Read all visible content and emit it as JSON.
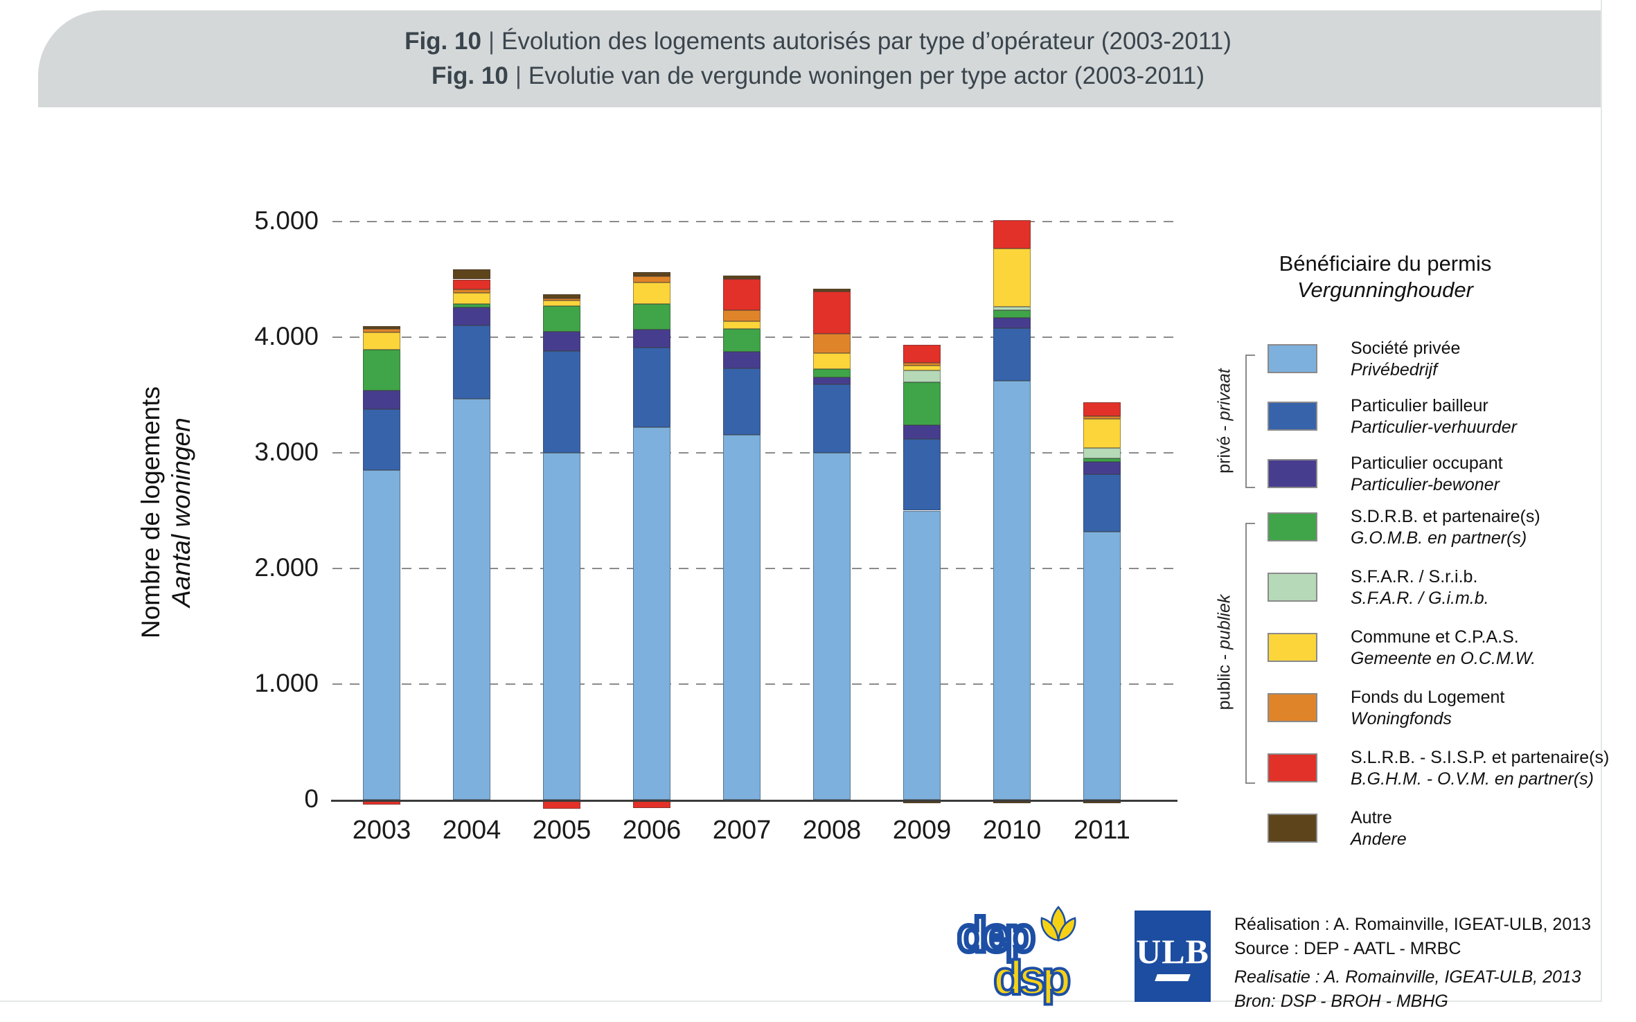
{
  "header": {
    "separator": "|",
    "title_fr_prefix": "Fig. 10",
    "title_fr_rest": "Évolution des logements autorisés par type d’opérateur (2003-2011)",
    "title_nl_prefix": "Fig. 10",
    "title_nl_rest": "Evolutie van de vergunde woningen per type actor (2003-2011)"
  },
  "y_axis": {
    "label_fr": "Nombre de logements",
    "label_nl": "Aantal woningen",
    "tick_labels": [
      "5.000",
      "4.000",
      "3.000",
      "2.000",
      "1.000",
      "0"
    ],
    "tick_values": [
      5000,
      4000,
      3000,
      2000,
      1000,
      0
    ]
  },
  "legend": {
    "title_fr": "Bénéficiaire du permis",
    "title_nl": "Vergunninghouder",
    "group_private_fr": "privé - ",
    "group_private_nl": "privaat",
    "group_public_fr": "public - ",
    "group_public_nl": "publiek"
  },
  "footer": {
    "credit_line1": "Réalisation : A. Romainville, IGEAT-ULB, 2013",
    "credit_line2": "Source : DEP - AATL - MRBC",
    "credit_line3": "Realisatie : A. Romainville, IGEAT-ULB, 2013",
    "credit_line4": "Bron: DSP - BROH - MBHG",
    "ulb_logo_text": "ULB",
    "dep_logo_text_top": "dep",
    "dep_logo_text_bottom": "dsp"
  },
  "chart_data": {
    "type": "bar",
    "stacked": true,
    "title": "Évolution des logements autorisés par type d’opérateur (2003-2011)",
    "ylabel": "Nombre de logements / Aantal woningen",
    "ylim": [
      -100,
      5000
    ],
    "grid": "horizontal-dashed",
    "legend_position": "right",
    "categories": [
      "2003",
      "2004",
      "2005",
      "2006",
      "2007",
      "2008",
      "2009",
      "2010",
      "2011"
    ],
    "totals_positive": [
      4095,
      4585,
      4370,
      4560,
      4530,
      4420,
      3935,
      5010,
      3440
    ],
    "series": [
      {
        "name_fr": "Société privée",
        "name_nl": "Privébedrijf",
        "group": "private",
        "color": "#7db0dc",
        "values": [
          2850,
          3465,
          3000,
          3220,
          3155,
          3000,
          2500,
          3625,
          2315
        ]
      },
      {
        "name_fr": "Particulier bailleur",
        "name_nl": "Particulier-verhuurder",
        "group": "private",
        "color": "#3763ab",
        "values": [
          530,
          635,
          880,
          690,
          575,
          590,
          620,
          450,
          500
        ]
      },
      {
        "name_fr": "Particulier occupant",
        "name_nl": "Particulier-bewoner",
        "group": "private",
        "color": "#473d8f",
        "values": [
          160,
          155,
          165,
          155,
          145,
          60,
          120,
          95,
          105
        ]
      },
      {
        "name_fr": "S.D.R.B. et partenaire(s)",
        "name_nl": "G.O.M.B. en partner(s)",
        "group": "public",
        "color": "#3fa548",
        "values": [
          355,
          35,
          225,
          225,
          195,
          75,
          370,
          65,
          30
        ]
      },
      {
        "name_fr": "S.F.A.R. / S.r.i.b.",
        "name_nl": "S.F.A.R. / G.i.m.b.",
        "group": "public",
        "color": "#b6d9b8",
        "values": [
          0,
          0,
          0,
          0,
          0,
          0,
          100,
          30,
          90
        ]
      },
      {
        "name_fr": "Commune et C.P.A.S.",
        "name_nl": "Gemeente en O.C.M.W.",
        "group": "public",
        "color": "#fcd53b",
        "values": [
          145,
          95,
          50,
          185,
          70,
          140,
          45,
          500,
          255
        ]
      },
      {
        "name_fr": "Fonds du Logement",
        "name_nl": "Woningfonds",
        "group": "public",
        "color": "#e08429",
        "values": [
          30,
          30,
          15,
          50,
          95,
          165,
          25,
          0,
          20
        ]
      },
      {
        "name_fr": "S.L.R.B. - S.I.S.P. et partenaire(s)",
        "name_nl": "B.G.H.M. - O.V.M. en partner(s)",
        "group": "public",
        "color": "#e23128",
        "values": [
          -30,
          85,
          -65,
          -60,
          270,
          365,
          155,
          245,
          125
        ]
      },
      {
        "name_fr": "Autre",
        "name_nl": "Andere",
        "group": "none",
        "color": "#5e441b",
        "values": [
          25,
          85,
          35,
          35,
          25,
          25,
          -20,
          -20,
          -20
        ]
      }
    ]
  }
}
